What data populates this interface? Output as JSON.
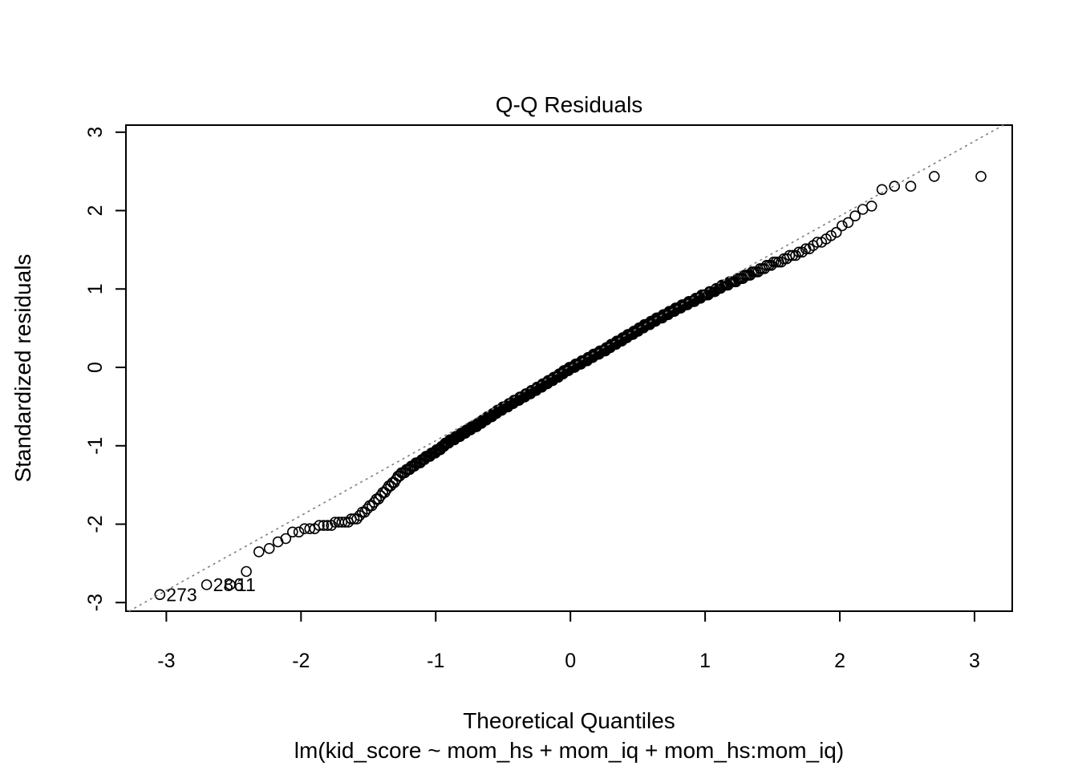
{
  "chart_data": {
    "type": "scatter",
    "subtype": "qq-normal-residual-plot",
    "title": "Q-Q Residuals",
    "xlabel": "Theoretical Quantiles",
    "ylabel": "Standardized residuals",
    "subtitle": "lm(kid_score ~ mom_hs + mom_iq + mom_hs:mom_iq)",
    "x_ticks": [
      -3,
      -2,
      -1,
      0,
      1,
      2,
      3
    ],
    "y_ticks": [
      -3,
      -2,
      -1,
      0,
      1,
      2,
      3
    ],
    "xlim": [
      -3.3,
      3.28
    ],
    "ylim": [
      -3.11,
      3.09
    ],
    "grid": false,
    "legend": false,
    "n_points": 434,
    "qq_curve": {
      "comment_free_desc": "empirical curve: theoretical normal quantile t -> sample standardized residual r",
      "t": [
        -3.05,
        -2.7,
        -2.52,
        -2.4,
        -2.32,
        -2.2,
        -2.05,
        -1.85,
        -1.6,
        -1.5,
        -1.4,
        -1.25,
        -1.05,
        -0.9,
        -0.7,
        -0.5,
        -0.3,
        -0.15,
        0.0,
        0.25,
        0.55,
        0.85,
        1.15,
        1.45,
        1.75,
        1.95,
        2.1,
        2.16,
        2.24,
        2.3,
        2.4,
        2.52,
        2.7,
        3.05
      ],
      "r": [
        -2.88,
        -2.78,
        -2.76,
        -2.58,
        -2.36,
        -2.28,
        -2.1,
        -2.03,
        -1.94,
        -1.8,
        -1.62,
        -1.35,
        -1.13,
        -0.95,
        -0.74,
        -0.52,
        -0.32,
        -0.17,
        -0.01,
        0.22,
        0.53,
        0.8,
        1.05,
        1.28,
        1.5,
        1.7,
        1.9,
        1.99,
        2.05,
        2.26,
        2.31,
        2.31,
        2.44,
        2.45
      ]
    },
    "labeled_points": [
      {
        "text": "273",
        "rank": 1,
        "t": -3.05,
        "r": -2.88
      },
      {
        "text": "286",
        "rank": 2,
        "t": -2.7,
        "r": -2.78
      },
      {
        "text": "11",
        "rank": 3,
        "t": -2.52,
        "r": -2.76
      }
    ],
    "reference_line": {
      "slope": 0.955,
      "intercept": 0.02,
      "style": "dotted",
      "color": "#808080"
    },
    "point_style": {
      "shape": "open-circle",
      "stroke_color": "#000000",
      "radius_px": 6,
      "stroke_width_px": 1.6
    },
    "colors": {
      "foreground": "#000000",
      "background": "#ffffff"
    }
  }
}
